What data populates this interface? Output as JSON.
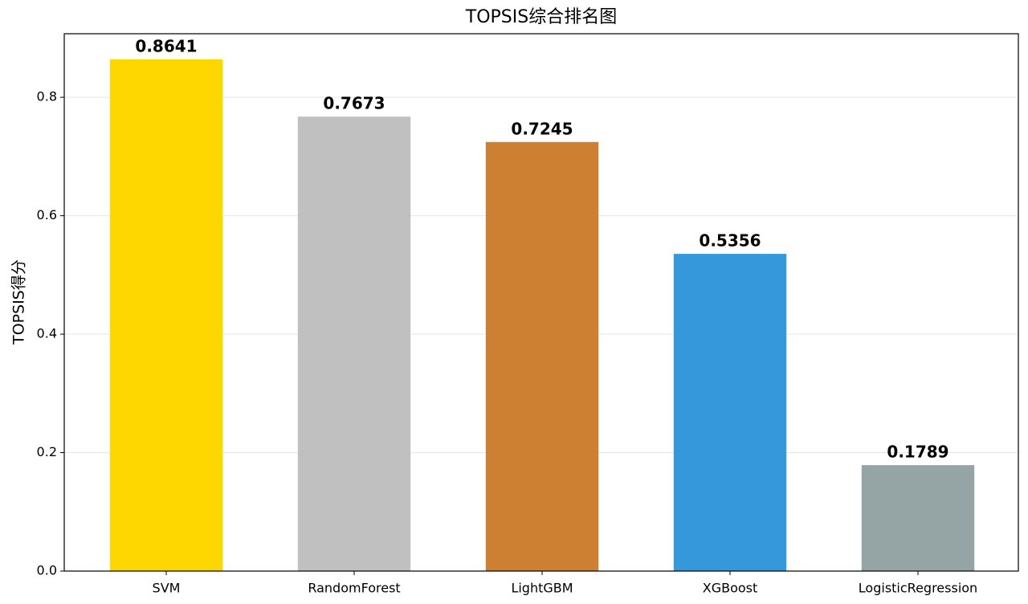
{
  "chart_data": {
    "type": "bar",
    "title": "TOPSIS综合排名图",
    "y_label": "TOPSIS得分",
    "categories": [
      "SVM",
      "RandomForest",
      "LightGBM",
      "XGBoost",
      "LogisticRegression"
    ],
    "values": [
      0.8641,
      0.7673,
      0.7245,
      0.5356,
      0.1789
    ],
    "colors": [
      "#FFD700",
      "#C0C0C0",
      "#CD7F32",
      "#3498DB",
      "#95A5A6"
    ],
    "ylim": [
      0,
      0.9073
    ],
    "yticks": [
      {
        "value": 0,
        "label": "0.0"
      },
      0.2,
      0.4,
      0.6,
      0.8
    ],
    "grid": true
  }
}
